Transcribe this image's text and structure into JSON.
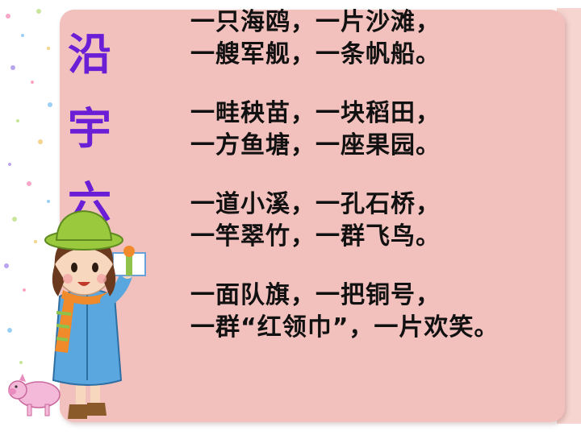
{
  "title_chars": [
    "沿",
    "宇",
    "六"
  ],
  "stanzas": [
    [
      "一只海鸥，一片沙滩，",
      "一艘军舰，一条帆船。"
    ],
    [
      "一畦秧苗，一块稻田，",
      "一方鱼塘，一座果园。"
    ],
    [
      "一道小溪，一孔石桥，",
      "一竿翠竹，一群飞鸟。"
    ],
    [
      "一面队旗，一把铜号，",
      "一群“红领巾”，一片欢笑。"
    ]
  ],
  "colors": {
    "panel": "#f2c1bd",
    "title": "#6a1fd6",
    "text": "#111111"
  },
  "icons": [
    "girl-with-gift-illustration",
    "piglet-illustration",
    "confetti-dots"
  ]
}
